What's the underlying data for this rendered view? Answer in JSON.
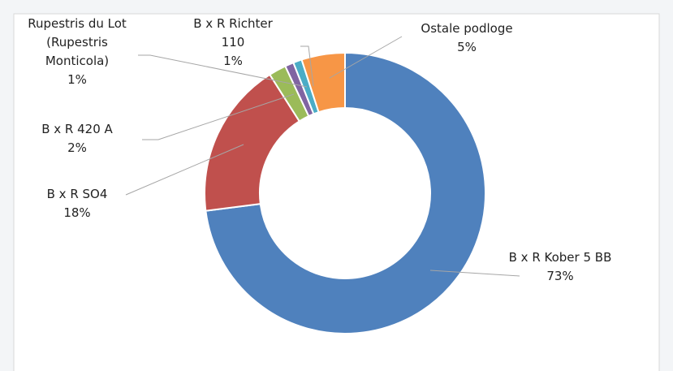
{
  "chart_data": {
    "type": "donut",
    "categories": [
      "B x R Kober 5 BB",
      "B x R SO4",
      "B x R 420 A",
      "Rupestris du Lot (Rupestris Monticola)",
      "B x R Richter 110",
      "Ostale podloge"
    ],
    "values": [
      73,
      18,
      2,
      1,
      1,
      5
    ],
    "value_labels": [
      "73%",
      "18%",
      "2%",
      "1%",
      "1%",
      "5%"
    ],
    "colors": [
      "#4f81bd",
      "#c0504d",
      "#9bbb59",
      "#8064a2",
      "#4bacc6",
      "#f79646"
    ]
  }
}
